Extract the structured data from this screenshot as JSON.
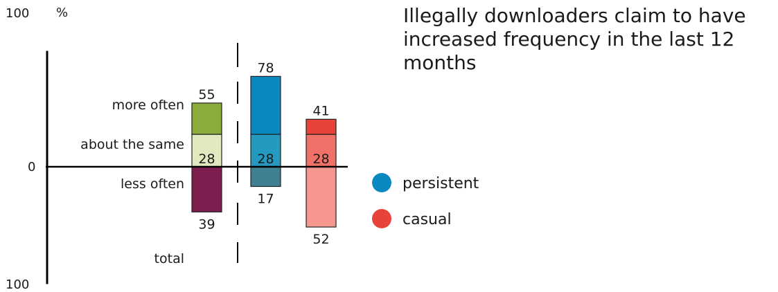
{
  "chart_data": {
    "type": "bar",
    "title": "Illegally downloaders claim to have increased frequency in the last 12 months",
    "ylabel": "%",
    "ylim": [
      -100,
      100
    ],
    "y_ticks": [
      {
        "value": 100,
        "label": "100"
      },
      {
        "value": 0,
        "label": "0"
      },
      {
        "value": -100,
        "label": "100"
      }
    ],
    "category_labels": [
      "more often",
      "about the same",
      "less often",
      "total"
    ],
    "groups": [
      {
        "segments": [
          {
            "category": "about the same",
            "start": 0,
            "end": 28,
            "color": "#e0e9bf"
          },
          {
            "category": "more often",
            "start": 28,
            "end": 55,
            "color": "#8aac3c"
          },
          {
            "category": "less often",
            "start": -39,
            "end": 0,
            "color": "#7d1f4e"
          }
        ],
        "labels": [
          {
            "text": "55",
            "value": 55,
            "place": "above"
          },
          {
            "text": "28",
            "value": 28,
            "place": "inside-bottom"
          },
          {
            "text": "39",
            "value": -39,
            "place": "below"
          }
        ]
      },
      {
        "name": "persistent",
        "segments": [
          {
            "category": "about the same",
            "start": 0,
            "end": 28,
            "color": "#2599bf"
          },
          {
            "category": "more often",
            "start": 28,
            "end": 78,
            "color": "#0b88c0"
          },
          {
            "category": "less often",
            "start": -17,
            "end": 0,
            "color": "#3f8192"
          }
        ],
        "labels": [
          {
            "text": "78",
            "value": 78,
            "place": "above"
          },
          {
            "text": "28",
            "value": 28,
            "place": "inside-bottom"
          },
          {
            "text": "17",
            "value": -17,
            "place": "below"
          }
        ]
      },
      {
        "name": "casual",
        "segments": [
          {
            "category": "about the same",
            "start": 0,
            "end": 28,
            "color": "#f07168"
          },
          {
            "category": "more often",
            "start": 28,
            "end": 41,
            "color": "#e8433a"
          },
          {
            "category": "less often",
            "start": -52,
            "end": 0,
            "color": "#f5978f"
          }
        ],
        "labels": [
          {
            "text": "41",
            "value": 41,
            "place": "above"
          },
          {
            "text": "28",
            "value": 28,
            "place": "inside-bottom"
          },
          {
            "text": "52",
            "value": -52,
            "place": "below"
          }
        ]
      }
    ],
    "legend": {
      "placement": "right",
      "items": [
        {
          "label": "persistent",
          "color": "#0b88c0"
        },
        {
          "label": "casual",
          "color": "#e8433a"
        }
      ]
    },
    "grid": false
  }
}
